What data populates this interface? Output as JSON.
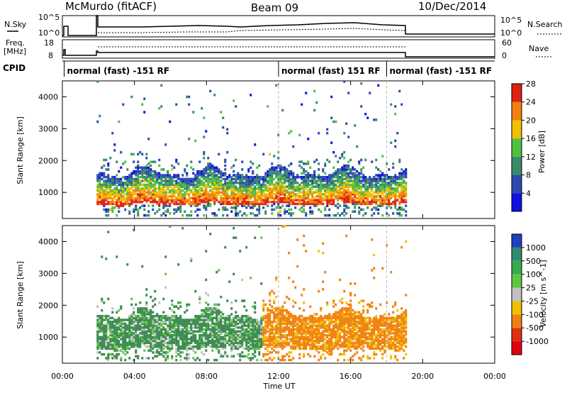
{
  "header": {
    "station": "McMurdo (fitACF)",
    "beam": "Beam 09",
    "date": "10/Dec/2014"
  },
  "top_panels": {
    "nsky_label": "N.Sky",
    "nsky_ticks": [
      "10^5",
      "10^0"
    ],
    "nsearch_label": "N.Search",
    "nsearch_ticks": [
      "10^5",
      "10^0"
    ],
    "freq_label_1": "Freq.",
    "freq_label_2": "[MHz]",
    "freq_ticks": [
      "18",
      "8"
    ],
    "nave_label": "Nave",
    "nave_ticks": [
      "60",
      "0"
    ],
    "cpid_label": "CPID"
  },
  "cpid_segments": [
    {
      "label": "normal (fast) -151 RF",
      "start_hour": 0.1
    },
    {
      "label": "normal (fast) 151 RF",
      "start_hour": 12.0
    },
    {
      "label": "normal (fast) -151 RF",
      "start_hour": 18.0
    }
  ],
  "x_axis": {
    "label": "Time UT",
    "range_hours": [
      0,
      24
    ],
    "tick_labels": [
      "00:00",
      "04:00",
      "08:00",
      "12:00",
      "16:00",
      "20:00",
      "00:00"
    ],
    "tick_hours": [
      0,
      4,
      8,
      12,
      16,
      20,
      24
    ]
  },
  "chart_data": [
    {
      "type": "heatmap",
      "title": "",
      "ylabel": "Slant Range [km]",
      "xlabel": "",
      "ylim": [
        180,
        4500
      ],
      "y_ticks": [
        1000,
        2000,
        3000,
        4000
      ],
      "colorbar": {
        "label": "Power [dB]",
        "tick_labels": [
          "4",
          "8",
          "12",
          "16",
          "20",
          "24",
          "28"
        ],
        "colors": [
          "#1010e0",
          "#2a4ab0",
          "#3a8a6a",
          "#50c040",
          "#f0c000",
          "#f08010",
          "#e02010"
        ]
      },
      "data_extent_hours": [
        1.9,
        19.1
      ],
      "dominant_echo_range_km": [
        600,
        1600
      ]
    },
    {
      "type": "heatmap",
      "title": "",
      "ylabel": "Slant Range [km]",
      "xlabel": "Time UT",
      "ylim": [
        180,
        4500
      ],
      "y_ticks": [
        1000,
        2000,
        3000,
        4000
      ],
      "colorbar": {
        "label": "Velocity [m s^-1]",
        "tick_labels": [
          "1000",
          "500",
          "100",
          "25",
          "-25",
          "-100",
          "-500",
          "-1000"
        ],
        "colors": [
          "#2040c0",
          "#308a70",
          "#3aaa50",
          "#60c840",
          "#c0c0c0",
          "#f0c000",
          "#f08010",
          "#e03010",
          "#e00010"
        ]
      },
      "data_extent_hours": [
        1.9,
        19.1
      ],
      "dominant_echo_range_km": [
        600,
        1700
      ]
    }
  ]
}
